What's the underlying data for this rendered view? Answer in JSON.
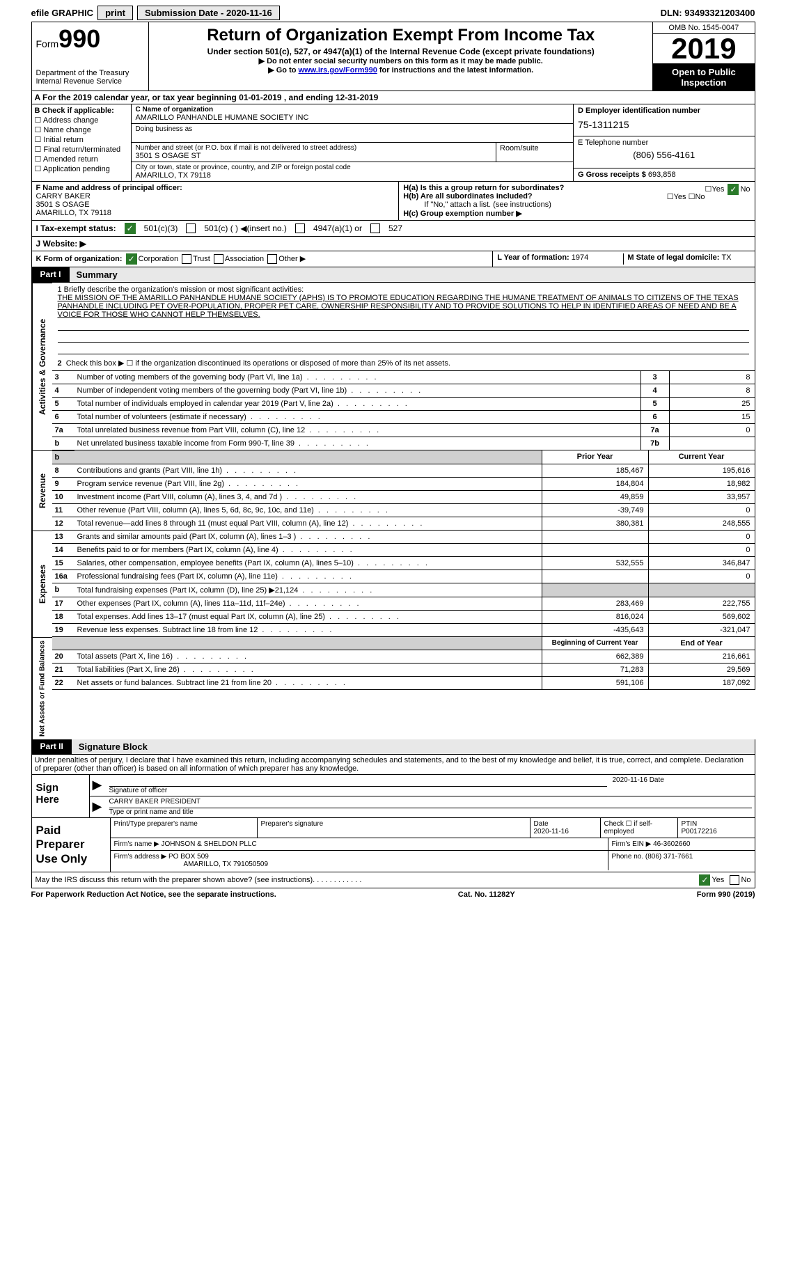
{
  "topbar": {
    "efile": "efile GRAPHIC",
    "print": "print",
    "subdate_label": "Submission Date - ",
    "subdate": "2020-11-16",
    "dln_label": "DLN: ",
    "dln": "93493321203400"
  },
  "header": {
    "form_label": "Form",
    "form_no": "990",
    "dept1": "Department of the Treasury",
    "dept2": "Internal Revenue Service",
    "title": "Return of Organization Exempt From Income Tax",
    "subtitle": "Under section 501(c), 527, or 4947(a)(1) of the Internal Revenue Code (except private foundations)",
    "note1": "▶ Do not enter social security numbers on this form as it may be made public.",
    "note2_pre": "▶ Go to ",
    "note2_link": "www.irs.gov/Form990",
    "note2_post": " for instructions and the latest information.",
    "omb": "OMB No. 1545-0047",
    "year": "2019",
    "open": "Open to Public Inspection"
  },
  "period": {
    "line": "A For the 2019 calendar year, or tax year beginning 01-01-2019   , and ending 12-31-2019"
  },
  "checkbox_b": {
    "label": "B Check if applicable:",
    "items": [
      "Address change",
      "Name change",
      "Initial return",
      "Final return/terminated",
      "Amended return",
      "Application pending"
    ]
  },
  "entity": {
    "c_label": "C Name of organization",
    "name": "AMARILLO PANHANDLE HUMANE SOCIETY INC",
    "dba_label": "Doing business as",
    "addr_label": "Number and street (or P.O. box if mail is not delivered to street address)",
    "room_label": "Room/suite",
    "addr": "3501 S OSAGE ST",
    "city_label": "City or town, state or province, country, and ZIP or foreign postal code",
    "city": "AMARILLO, TX  79118",
    "d_label": "D Employer identification number",
    "ein": "75-1311215",
    "e_label": "E Telephone number",
    "phone": "(806) 556-4161",
    "g_label": "G Gross receipts $ ",
    "gross": "693,858"
  },
  "officer": {
    "f_label": "F  Name and address of principal officer:",
    "name": "CARRY BAKER",
    "addr1": "3501 S OSAGE",
    "addr2": "AMARILLO, TX  79118"
  },
  "h": {
    "ha_label": "H(a)  Is this a group return for subordinates?",
    "hb_label": "H(b)  Are all subordinates included?",
    "hb_note": "If \"No,\" attach a list. (see instructions)",
    "hc_label": "H(c)  Group exemption number ▶",
    "yes": "Yes",
    "no": "No"
  },
  "status": {
    "i_label": "I  Tax-exempt status:",
    "opt1": "501(c)(3)",
    "opt2": "501(c) (  ) ◀(insert no.)",
    "opt3": "4947(a)(1) or",
    "opt4": "527",
    "j_label": "J  Website: ▶"
  },
  "k": {
    "label": "K Form of organization:",
    "corp": "Corporation",
    "trust": "Trust",
    "assoc": "Association",
    "other": "Other ▶",
    "l_label": "L Year of formation: ",
    "l_val": "1974",
    "m_label": "M State of legal domicile: ",
    "m_val": "TX"
  },
  "part1": {
    "tag": "Part I",
    "title": "Summary"
  },
  "mission": {
    "q": "1  Briefly describe the organization's mission or most significant activities:",
    "text": "THE MISSION OF THE AMARILLO PANHANDLE HUMANE SOCIETY (APHS) IS TO PROMOTE EDUCATION REGARDING THE HUMANE TREATMENT OF ANIMALS TO CITIZENS OF THE TEXAS PANHANDLE INCLUDING PET OVER-POPULATION, PROPER PET CARE, OWNERSHIP RESPONSIBILITY AND TO PROVIDE SOLUTIONS TO HELP IN IDENTIFIED AREAS OF NEED AND BE A VOICE FOR THOSE WHO CANNOT HELP THEMSELVES."
  },
  "gov": {
    "label": "Activities & Governance",
    "l2": "Check this box ▶ ☐  if the organization discontinued its operations or disposed of more than 25% of its net assets.",
    "rows": [
      {
        "n": "3",
        "d": "Number of voting members of the governing body (Part VI, line 1a)",
        "box": "3",
        "v": "8"
      },
      {
        "n": "4",
        "d": "Number of independent voting members of the governing body (Part VI, line 1b)",
        "box": "4",
        "v": "8"
      },
      {
        "n": "5",
        "d": "Total number of individuals employed in calendar year 2019 (Part V, line 2a)",
        "box": "5",
        "v": "25"
      },
      {
        "n": "6",
        "d": "Total number of volunteers (estimate if necessary)",
        "box": "6",
        "v": "15"
      },
      {
        "n": "7a",
        "d": "Total unrelated business revenue from Part VIII, column (C), line 12",
        "box": "7a",
        "v": "0"
      },
      {
        "n": "b",
        "d": "Net unrelated business taxable income from Form 990-T, line 39",
        "box": "7b",
        "v": ""
      }
    ]
  },
  "rev": {
    "label": "Revenue",
    "h1": "Prior Year",
    "h2": "Current Year",
    "rows": [
      {
        "n": "8",
        "d": "Contributions and grants (Part VIII, line 1h)",
        "p": "185,467",
        "c": "195,616"
      },
      {
        "n": "9",
        "d": "Program service revenue (Part VIII, line 2g)",
        "p": "184,804",
        "c": "18,982"
      },
      {
        "n": "10",
        "d": "Investment income (Part VIII, column (A), lines 3, 4, and 7d )",
        "p": "49,859",
        "c": "33,957"
      },
      {
        "n": "11",
        "d": "Other revenue (Part VIII, column (A), lines 5, 6d, 8c, 9c, 10c, and 11e)",
        "p": "-39,749",
        "c": "0"
      },
      {
        "n": "12",
        "d": "Total revenue—add lines 8 through 11 (must equal Part VIII, column (A), line 12)",
        "p": "380,381",
        "c": "248,555"
      }
    ]
  },
  "exp": {
    "label": "Expenses",
    "rows": [
      {
        "n": "13",
        "d": "Grants and similar amounts paid (Part IX, column (A), lines 1–3 )",
        "p": "",
        "c": "0"
      },
      {
        "n": "14",
        "d": "Benefits paid to or for members (Part IX, column (A), line 4)",
        "p": "",
        "c": "0"
      },
      {
        "n": "15",
        "d": "Salaries, other compensation, employee benefits (Part IX, column (A), lines 5–10)",
        "p": "532,555",
        "c": "346,847"
      },
      {
        "n": "16a",
        "d": "Professional fundraising fees (Part IX, column (A), line 11e)",
        "p": "",
        "c": "0"
      },
      {
        "n": "b",
        "d": "Total fundraising expenses (Part IX, column (D), line 25) ▶21,124",
        "p": "shade",
        "c": "shade"
      },
      {
        "n": "17",
        "d": "Other expenses (Part IX, column (A), lines 11a–11d, 11f–24e)",
        "p": "283,469",
        "c": "222,755"
      },
      {
        "n": "18",
        "d": "Total expenses. Add lines 13–17 (must equal Part IX, column (A), line 25)",
        "p": "816,024",
        "c": "569,602"
      },
      {
        "n": "19",
        "d": "Revenue less expenses. Subtract line 18 from line 12",
        "p": "-435,643",
        "c": "-321,047"
      }
    ]
  },
  "net": {
    "label": "Net Assets or Fund Balances",
    "h1": "Beginning of Current Year",
    "h2": "End of Year",
    "rows": [
      {
        "n": "20",
        "d": "Total assets (Part X, line 16)",
        "p": "662,389",
        "c": "216,661"
      },
      {
        "n": "21",
        "d": "Total liabilities (Part X, line 26)",
        "p": "71,283",
        "c": "29,569"
      },
      {
        "n": "22",
        "d": "Net assets or fund balances. Subtract line 21 from line 20",
        "p": "591,106",
        "c": "187,092"
      }
    ]
  },
  "part2": {
    "tag": "Part II",
    "title": "Signature Block",
    "decl": "Under penalties of perjury, I declare that I have examined this return, including accompanying schedules and statements, and to the best of my knowledge and belief, it is true, correct, and complete. Declaration of preparer (other than officer) is based on all information of which preparer has any knowledge."
  },
  "sign": {
    "here": "Sign Here",
    "sig_officer": "Signature of officer",
    "date": "Date",
    "date_val": "2020-11-16",
    "name": "CARRY BAKER  PRESIDENT",
    "name_label": "Type or print name and title"
  },
  "prep": {
    "label": "Paid Preparer Use Only",
    "h1": "Print/Type preparer's name",
    "h2": "Preparer's signature",
    "h3_label": "Date",
    "h3": "2020-11-16",
    "h4_label": "Check ☐  if self-employed",
    "h5_label": "PTIN",
    "h5": "P00172216",
    "firm_label": "Firm's name    ▶ ",
    "firm": "JOHNSON & SHELDON PLLC",
    "ein_label": "Firm's EIN ▶ ",
    "ein": "46-3602660",
    "addr_label": "Firm's address ▶ ",
    "addr1": "PO BOX 509",
    "addr2": "AMARILLO, TX  791050509",
    "phone_label": "Phone no. ",
    "phone": "(806) 371-7661"
  },
  "discuss": {
    "q": "May the IRS discuss this return with the preparer shown above? (see instructions)",
    "yes": "Yes",
    "no": "No"
  },
  "footer": {
    "left": "For Paperwork Reduction Act Notice, see the separate instructions.",
    "mid": "Cat. No. 11282Y",
    "right_form": "Form ",
    "right_no": "990",
    "right_yr": " (2019)"
  }
}
